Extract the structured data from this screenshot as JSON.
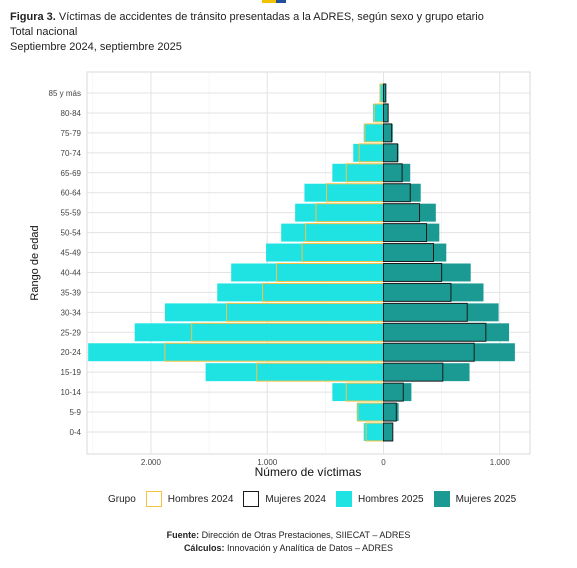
{
  "header": {
    "figure_label": "Figura 3.",
    "title_text": "Víctimas de accidentes de tránsito presentadas a la ADRES, según sexo y grupo etario",
    "line2": "Total nacional",
    "line3": "Septiembre 2024, septiembre 2025"
  },
  "legend": {
    "group_label": "Grupo",
    "items": [
      {
        "label": "Hombres 2024",
        "fill": "none",
        "stroke": "#f5c242"
      },
      {
        "label": "Mujeres 2024",
        "fill": "none",
        "stroke": "#1a1a1a"
      },
      {
        "label": "Hombres 2025",
        "fill": "#1fe3e3",
        "stroke": "#1fe3e3"
      },
      {
        "label": "Mujeres 2025",
        "fill": "#1a9a92",
        "stroke": "#1a9a92"
      }
    ]
  },
  "footer": {
    "fuente_label": "Fuente:",
    "fuente_text": " Dirección de Otras Prestaciones, SIIECAT – ADRES",
    "calculos_label": "Cálculos:",
    "calculos_text": " Innovación y Analítica de Datos – ADRES"
  },
  "chart_data": {
    "type": "bar",
    "orientation": "horizontal population pyramid",
    "xlabel": "Número de víctimas",
    "ylabel": "Rango de edad",
    "xlim": [
      -2550,
      1260
    ],
    "x_ticks": [
      -2000,
      -1000,
      0,
      1000
    ],
    "x_tick_labels": [
      "2.000",
      "1.000",
      "0",
      "1.000"
    ],
    "grid": true,
    "legend_position": "bottom",
    "categories": [
      "0-4",
      "5-9",
      "10-14",
      "15-19",
      "20-24",
      "25-29",
      "30-34",
      "35-39",
      "40-44",
      "45-49",
      "50-54",
      "55-59",
      "60-64",
      "65-69",
      "70-74",
      "75-79",
      "80-84",
      "85 y más"
    ],
    "series": [
      {
        "name": "Hombres 2025",
        "color": "#1fe3e3",
        "side": "left",
        "values": [
          170,
          230,
          440,
          1530,
          2540,
          2140,
          1880,
          1430,
          1310,
          1010,
          880,
          760,
          680,
          440,
          260,
          170,
          90,
          35
        ]
      },
      {
        "name": "Mujeres 2025",
        "color": "#1a9a92",
        "side": "right",
        "values": [
          80,
          130,
          240,
          740,
          1130,
          1080,
          990,
          860,
          750,
          540,
          480,
          450,
          320,
          230,
          130,
          80,
          40,
          20
        ]
      },
      {
        "name": "Hombres 2024",
        "color": "#f5c242",
        "side": "left",
        "values": [
          150,
          220,
          320,
          1090,
          1880,
          1650,
          1350,
          1040,
          920,
          700,
          670,
          580,
          490,
          320,
          210,
          160,
          80,
          30
        ]
      },
      {
        "name": "Mujeres 2024",
        "color": "#1a1a1a",
        "side": "right",
        "values": [
          80,
          110,
          170,
          510,
          780,
          880,
          720,
          580,
          500,
          430,
          370,
          310,
          230,
          160,
          120,
          70,
          40,
          20
        ]
      }
    ]
  }
}
